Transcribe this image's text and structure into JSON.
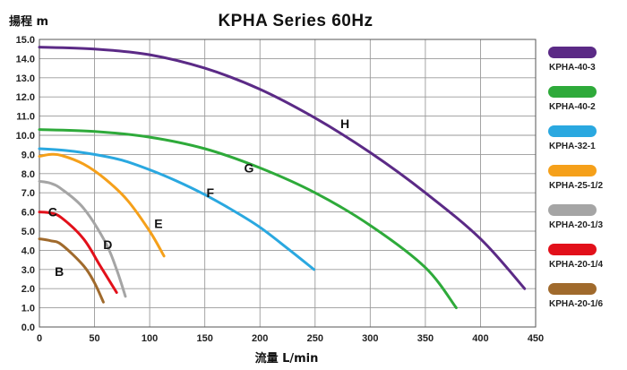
{
  "chart_data": {
    "type": "line",
    "title": "KPHA Series  60Hz",
    "xlabel": "流量 L/min",
    "ylabel": "揚程 m",
    "xlim": [
      0,
      450
    ],
    "ylim": [
      0,
      15
    ],
    "xticks": [
      "0",
      "50",
      "100",
      "150",
      "200",
      "250",
      "300",
      "350",
      "400",
      "450"
    ],
    "yticks": [
      "0.0",
      "1.0",
      "2.0",
      "3.0",
      "4.0",
      "5.0",
      "6.0",
      "7.0",
      "8.0",
      "9.0",
      "10.0",
      "11.0",
      "12.0",
      "13.0",
      "14.0",
      "15.0"
    ],
    "grid": true,
    "legend_position": "right",
    "series": [
      {
        "name": "KPHA-40-3",
        "label": "H",
        "color": "#5b2a86",
        "label_at": [
          277,
          10.6
        ],
        "points": [
          [
            0,
            14.6
          ],
          [
            50,
            14.5
          ],
          [
            100,
            14.2
          ],
          [
            150,
            13.5
          ],
          [
            200,
            12.4
          ],
          [
            250,
            10.9
          ],
          [
            300,
            9.1
          ],
          [
            350,
            7.0
          ],
          [
            400,
            4.6
          ],
          [
            440,
            2.0
          ]
        ]
      },
      {
        "name": "KPHA-40-2",
        "label": "G",
        "color": "#2eaa3a",
        "label_at": [
          190,
          8.3
        ],
        "points": [
          [
            0,
            10.3
          ],
          [
            50,
            10.2
          ],
          [
            100,
            9.9
          ],
          [
            150,
            9.3
          ],
          [
            200,
            8.3
          ],
          [
            250,
            7.0
          ],
          [
            300,
            5.3
          ],
          [
            350,
            3.1
          ],
          [
            378,
            1.0
          ]
        ]
      },
      {
        "name": "KPHA-32-1",
        "label": "F",
        "color": "#2aa8e0",
        "label_at": [
          155,
          7.0
        ],
        "points": [
          [
            0,
            9.3
          ],
          [
            25,
            9.2
          ],
          [
            50,
            9.0
          ],
          [
            75,
            8.7
          ],
          [
            100,
            8.2
          ],
          [
            125,
            7.6
          ],
          [
            150,
            6.9
          ],
          [
            175,
            6.1
          ],
          [
            200,
            5.2
          ],
          [
            225,
            4.1
          ],
          [
            249,
            3.0
          ]
        ]
      },
      {
        "name": "KPHA-25-1/2",
        "label": "E",
        "color": "#f5a01a",
        "label_at": [
          108,
          5.4
        ],
        "points": [
          [
            0,
            8.9
          ],
          [
            10,
            9.0
          ],
          [
            20,
            8.95
          ],
          [
            40,
            8.5
          ],
          [
            60,
            7.7
          ],
          [
            80,
            6.6
          ],
          [
            100,
            5.0
          ],
          [
            113,
            3.7
          ]
        ]
      },
      {
        "name": "KPHA-20-1/3",
        "label": "D",
        "color": "#a5a5a5",
        "label_at": [
          62,
          4.3
        ],
        "points": [
          [
            0,
            7.6
          ],
          [
            10,
            7.5
          ],
          [
            20,
            7.2
          ],
          [
            40,
            6.2
          ],
          [
            60,
            4.4
          ],
          [
            70,
            3.0
          ],
          [
            78,
            1.6
          ]
        ]
      },
      {
        "name": "KPHA-20-1/4",
        "label": "C",
        "color": "#e2101a",
        "label_at": [
          12,
          6.0
        ],
        "points": [
          [
            0,
            6.0
          ],
          [
            10,
            5.95
          ],
          [
            20,
            5.7
          ],
          [
            40,
            4.6
          ],
          [
            55,
            3.2
          ],
          [
            70,
            1.8
          ]
        ]
      },
      {
        "name": "KPHA-20-1/6",
        "label": "B",
        "color": "#a06a2c",
        "label_at": [
          18,
          2.9
        ],
        "points": [
          [
            0,
            4.6
          ],
          [
            10,
            4.5
          ],
          [
            20,
            4.3
          ],
          [
            40,
            3.2
          ],
          [
            50,
            2.3
          ],
          [
            58,
            1.3
          ]
        ]
      }
    ]
  }
}
